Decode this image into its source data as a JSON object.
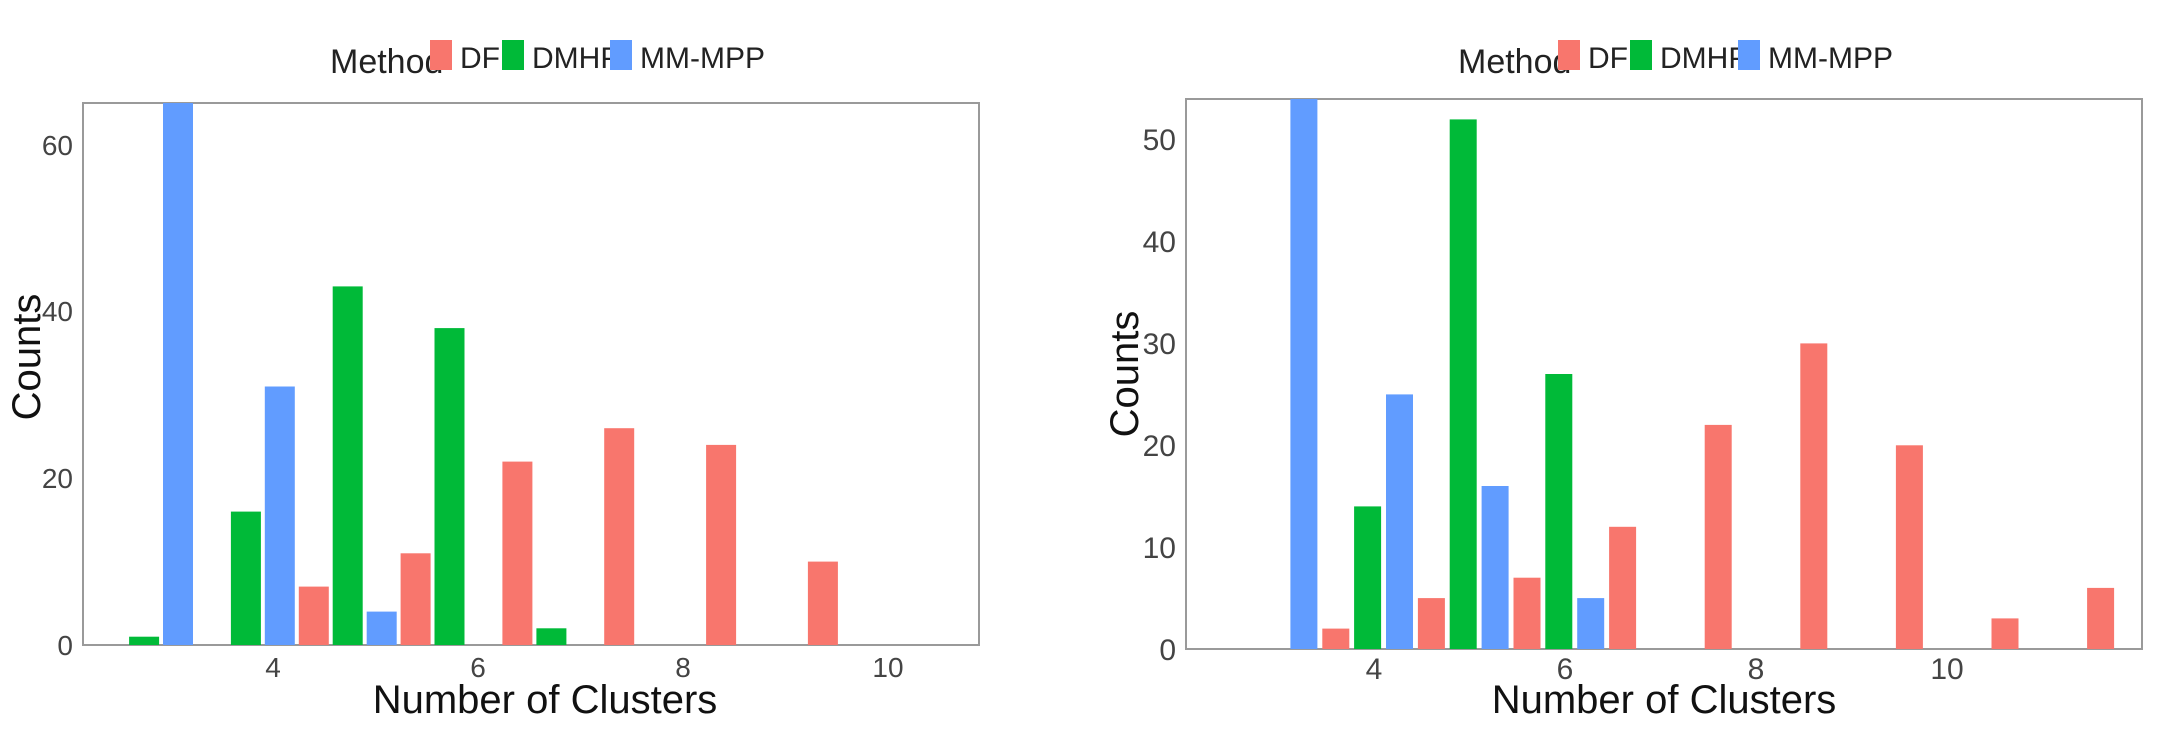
{
  "colors": {
    "DF": "#F8766D",
    "DMHP": "#00BA38",
    "MM-MPP": "#619CFF"
  },
  "chart_data": [
    {
      "type": "bar",
      "xlabel": "Number of Clusters",
      "ylabel": "Counts",
      "legend": {
        "title": "Method",
        "entries": [
          "DF",
          "DMHP",
          "MM-MPP"
        ],
        "position": "top"
      },
      "x_ticks": [
        "4",
        "6",
        "8",
        "10"
      ],
      "y_ticks": [
        "0",
        "20",
        "40",
        "60"
      ],
      "ylim": [
        0,
        65
      ],
      "xlim": [
        2.4,
        11.2
      ],
      "grid": false,
      "bars": [
        {
          "series": "DMHP",
          "x": 3,
          "value": 1
        },
        {
          "series": "MM-MPP",
          "x": 3,
          "value": 65
        },
        {
          "series": "DMHP",
          "x": 4,
          "value": 16
        },
        {
          "series": "MM-MPP",
          "x": 4,
          "value": 31
        },
        {
          "series": "DF",
          "x": 5,
          "value": 7
        },
        {
          "series": "DMHP",
          "x": 5,
          "value": 43
        },
        {
          "series": "MM-MPP",
          "x": 5,
          "value": 4
        },
        {
          "series": "DF",
          "x": 6,
          "value": 11
        },
        {
          "series": "DMHP",
          "x": 6,
          "value": 38
        },
        {
          "series": "DF",
          "x": 7,
          "value": 22
        },
        {
          "series": "DMHP",
          "x": 7,
          "value": 2
        },
        {
          "series": "DF",
          "x": 8,
          "value": 26
        },
        {
          "series": "DF",
          "x": 9,
          "value": 24
        },
        {
          "series": "DF",
          "x": 10,
          "value": 10
        }
      ]
    },
    {
      "type": "bar",
      "xlabel": "Number of Clusters",
      "ylabel": "Counts",
      "legend": {
        "title": "Method",
        "entries": [
          "DF",
          "DMHP",
          "MM-MPP"
        ],
        "position": "top"
      },
      "x_ticks": [
        "4",
        "6",
        "8",
        "10"
      ],
      "y_ticks": [
        "0",
        "10",
        "20",
        "30",
        "40",
        "50"
      ],
      "ylim": [
        0,
        54
      ],
      "xlim": [
        2.1,
        12.1
      ],
      "grid": false,
      "bars": [
        {
          "series": "MM-MPP",
          "x": 3,
          "value": 54
        },
        {
          "series": "DF",
          "x": 4,
          "value": 2
        },
        {
          "series": "DMHP",
          "x": 4,
          "value": 14
        },
        {
          "series": "MM-MPP",
          "x": 4,
          "value": 25
        },
        {
          "series": "DF",
          "x": 5,
          "value": 5
        },
        {
          "series": "DMHP",
          "x": 5,
          "value": 52
        },
        {
          "series": "MM-MPP",
          "x": 5,
          "value": 16
        },
        {
          "series": "DF",
          "x": 6,
          "value": 7
        },
        {
          "series": "DMHP",
          "x": 6,
          "value": 27
        },
        {
          "series": "MM-MPP",
          "x": 6,
          "value": 5
        },
        {
          "series": "DF",
          "x": 7,
          "value": 12
        },
        {
          "series": "DF",
          "x": 8,
          "value": 22
        },
        {
          "series": "DF",
          "x": 9,
          "value": 30
        },
        {
          "series": "DF",
          "x": 10,
          "value": 20
        },
        {
          "series": "DF",
          "x": 11,
          "value": 3
        },
        {
          "series": "DF",
          "x": 12,
          "value": 6
        }
      ]
    }
  ]
}
